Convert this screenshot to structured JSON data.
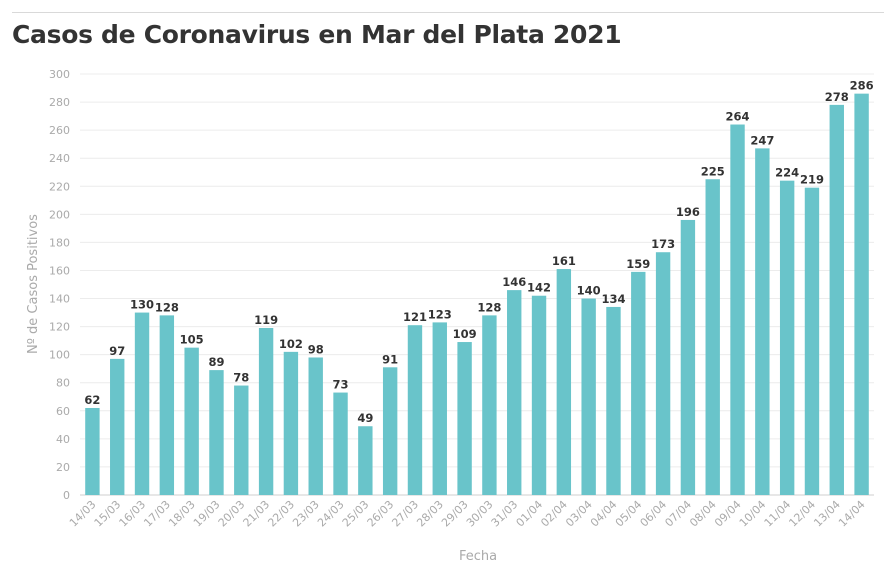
{
  "chart_data": {
    "type": "bar",
    "title": "Casos de Coronavirus en Mar del Plata 2021",
    "xlabel": "Fecha",
    "ylabel": "Nº de Casos Positivos",
    "ylim": [
      0,
      300
    ],
    "ytick_step": 20,
    "grid": true,
    "bar_color": "#69c4ca",
    "categories": [
      "14/03",
      "15/03",
      "16/03",
      "17/03",
      "18/03",
      "19/03",
      "20/03",
      "21/03",
      "22/03",
      "23/03",
      "24/03",
      "25/03",
      "26/03",
      "27/03",
      "28/03",
      "29/03",
      "30/03",
      "31/03",
      "01/04",
      "02/04",
      "03/04",
      "04/04",
      "05/04",
      "06/04",
      "07/04",
      "08/04",
      "09/04",
      "10/04",
      "11/04",
      "12/04",
      "13/04",
      "14/04"
    ],
    "values": [
      62,
      97,
      130,
      128,
      105,
      89,
      78,
      119,
      102,
      98,
      73,
      49,
      91,
      121,
      123,
      109,
      128,
      146,
      142,
      161,
      140,
      134,
      159,
      173,
      196,
      225,
      264,
      247,
      224,
      219,
      278,
      286
    ]
  }
}
